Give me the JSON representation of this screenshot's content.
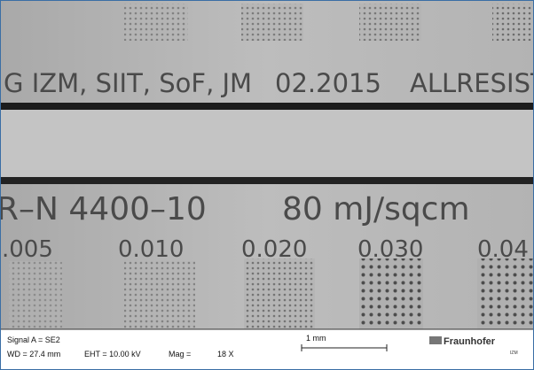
{
  "sample": {
    "line1": [
      "G IZM, SIIT, SoF, JM",
      "02.2015",
      "ALLRESIST"
    ],
    "line2": [
      "R–N 4400–10",
      "80 mJ/sqcm"
    ],
    "doses": [
      ".005",
      "0.010",
      "0.020",
      "0.030",
      "0.04"
    ]
  },
  "info_bar": {
    "signal": "Signal A = SE2",
    "wd": "WD = 27.4 mm",
    "eht": "EHT = 10.00 kV",
    "mag_label": "Mag =",
    "mag_value": "18 X",
    "scale": "1 mm",
    "logo": "Fraunhofer",
    "logo_sub": "IZM"
  }
}
